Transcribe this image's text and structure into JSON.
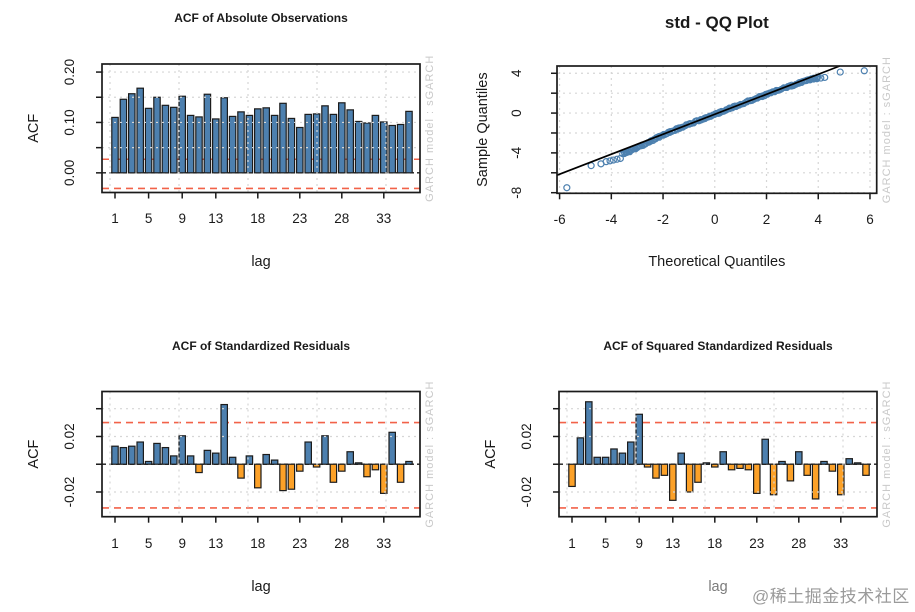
{
  "watermarks": {
    "model_label": "GARCH model : sGARCH",
    "site_credit": "@稀土掘金技术社区"
  },
  "colors": {
    "bar_positive": "#4D80AF",
    "bar_negative": "#FCA128",
    "bar_stroke": "#1c1c1c",
    "conf_band": "#F26249",
    "grid": "#d6d6d6",
    "zero_line": "#1a1a1a",
    "qq_point": "#4D80AF",
    "qq_line": "#000000",
    "text": "#1a1a1a",
    "watermark_gray": "#c9c9c9",
    "faded_label": "#5a5a5a"
  },
  "chart_data": [
    {
      "id": "acf_abs",
      "type": "bar",
      "title": "ACF of Absolute Observations",
      "xlabel": "lag",
      "ylabel": "ACF",
      "first_lag": 1,
      "x_tick_lags": [
        1,
        5,
        9,
        13,
        18,
        23,
        28,
        33
      ],
      "y_ticks": [
        0.0,
        0.05,
        0.1,
        0.15,
        0.2
      ],
      "y_tick_labels": [
        "0.00",
        "",
        "0.10",
        "",
        "0.20"
      ],
      "ylim": [
        -0.039,
        0.216
      ],
      "conf_bands": [
        0.027,
        -0.031
      ],
      "grid_y": [
        0.05,
        0.1,
        0.15,
        0.2
      ],
      "values": [
        0.11,
        0.146,
        0.157,
        0.168,
        0.128,
        0.15,
        0.134,
        0.13,
        0.152,
        0.114,
        0.111,
        0.156,
        0.107,
        0.149,
        0.112,
        0.121,
        0.114,
        0.127,
        0.129,
        0.114,
        0.138,
        0.108,
        0.09,
        0.116,
        0.117,
        0.133,
        0.116,
        0.139,
        0.125,
        0.102,
        0.099,
        0.114,
        0.101,
        0.094,
        0.096,
        0.122
      ]
    },
    {
      "id": "qq_plot",
      "type": "scatter",
      "title": "std - QQ Plot",
      "xlabel": "Theoretical Quantiles",
      "ylabel": "Sample Quantiles",
      "x_ticks": [
        -6,
        -4,
        -2,
        0,
        2,
        4,
        6
      ],
      "x_tick_labels": [
        "-6",
        "-4",
        "-2",
        "0",
        "2",
        "4",
        "6"
      ],
      "y_ticks": [
        -8,
        -6,
        -4,
        -2,
        0,
        2,
        4
      ],
      "y_tick_labels": [
        "-8",
        "",
        "-4",
        "",
        "0",
        "",
        "4"
      ],
      "xlim": [
        -6.1,
        6.26
      ],
      "ylim": [
        -8.06,
        4.73
      ],
      "ref_line": {
        "slope": 1.004,
        "intercept": -0.12
      },
      "cloud": {
        "x_start": -3.55,
        "x_end": 4.0,
        "n": 230,
        "spread": 0.18
      },
      "outlier_points": [
        [
          -5.72,
          -7.5
        ],
        [
          -4.78,
          -5.28
        ],
        [
          -4.4,
          -5.1
        ],
        [
          -4.2,
          -4.88
        ],
        [
          -4.05,
          -4.8
        ],
        [
          -3.92,
          -4.72
        ],
        [
          -3.78,
          -4.64
        ],
        [
          -3.65,
          -4.56
        ],
        [
          3.55,
          3.28
        ],
        [
          3.68,
          3.35
        ],
        [
          3.82,
          3.42
        ],
        [
          3.95,
          3.45
        ],
        [
          4.1,
          3.52
        ],
        [
          4.25,
          3.58
        ],
        [
          4.85,
          4.12
        ],
        [
          5.78,
          4.25
        ]
      ]
    },
    {
      "id": "acf_std_resid",
      "type": "bar",
      "title": "ACF of Standardized Residuals",
      "xlabel": "lag",
      "ylabel": "ACF",
      "first_lag": 1,
      "x_tick_lags": [
        1,
        5,
        9,
        13,
        18,
        23,
        28,
        33
      ],
      "y_ticks": [
        -0.02,
        0.0,
        0.02,
        0.04
      ],
      "y_tick_labels": [
        "-0.02",
        "",
        "0.02",
        ""
      ],
      "ylim": [
        -0.0378,
        0.0524
      ],
      "conf_bands": [
        0.03,
        -0.0315
      ],
      "grid_y": [
        -0.02,
        0.02,
        0.04
      ],
      "values": [
        0.013,
        0.012,
        0.013,
        0.016,
        0.002,
        0.015,
        0.012,
        0.006,
        0.0205,
        0.006,
        -0.006,
        0.01,
        0.008,
        0.043,
        0.005,
        -0.01,
        0.006,
        -0.017,
        0.007,
        0.003,
        -0.019,
        -0.018,
        -0.005,
        0.016,
        -0.002,
        0.0205,
        -0.013,
        -0.005,
        0.009,
        0.001,
        -0.009,
        -0.004,
        -0.021,
        0.023,
        -0.013,
        0.002
      ]
    },
    {
      "id": "acf_sq_std_resid",
      "type": "bar",
      "title": "ACF of Squared Standardized Residuals",
      "xlabel": "lag",
      "ylabel": "ACF",
      "first_lag": 1,
      "x_tick_lags": [
        1,
        5,
        9,
        13,
        18,
        23,
        28,
        33
      ],
      "y_ticks": [
        -0.02,
        0.0,
        0.02,
        0.04
      ],
      "y_tick_labels": [
        "-0.02",
        "",
        "0.02",
        ""
      ],
      "ylim": [
        -0.0378,
        0.0524
      ],
      "conf_bands": [
        0.03,
        -0.0315
      ],
      "grid_y": [
        -0.02,
        0.02,
        0.04
      ],
      "values": [
        -0.016,
        0.019,
        0.045,
        0.005,
        0.005,
        0.011,
        0.008,
        0.016,
        0.036,
        -0.002,
        -0.01,
        -0.008,
        -0.026,
        0.008,
        -0.02,
        -0.013,
        0.001,
        -0.002,
        0.009,
        -0.004,
        -0.003,
        -0.004,
        -0.021,
        0.018,
        -0.022,
        0.002,
        -0.012,
        0.009,
        -0.008,
        -0.025,
        0.002,
        -0.005,
        -0.022,
        0.004,
        0.001,
        -0.008
      ]
    }
  ]
}
